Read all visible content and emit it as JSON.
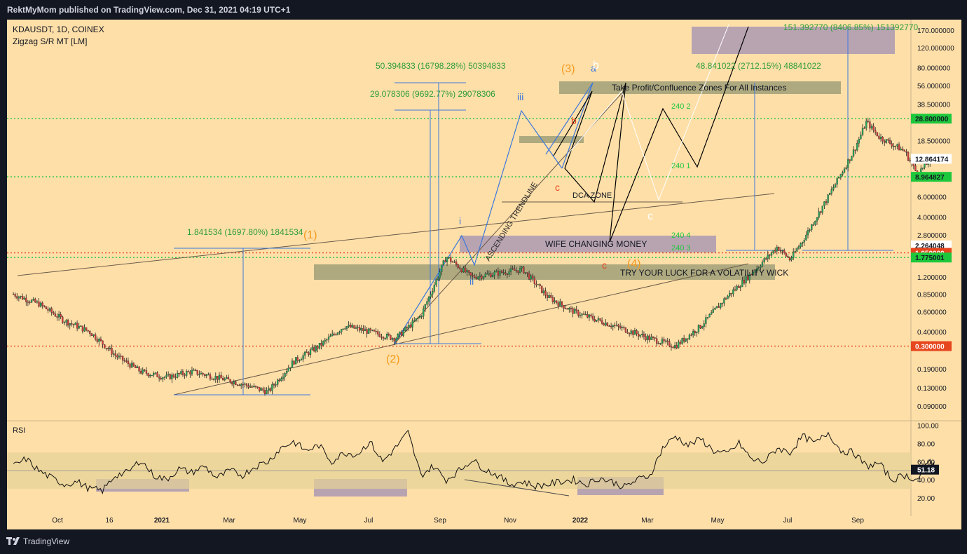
{
  "header": {
    "published": "RektMyMom published on TradingView.com, Dec 31, 2021 04:19 UTC+1"
  },
  "footer": {
    "brand": "TradingView"
  },
  "colors": {
    "background": "#ffdfa8",
    "frame": "#131722",
    "green_level": "#1ec83c",
    "red_level": "#e6451e",
    "blue_line": "#3c78dc",
    "zone_dark": "#a0a078",
    "zone_purple": "#a090b4"
  },
  "chart_data": {
    "type": "candlestick",
    "symbol_line": "KDAUSDT, 1D, COINEX",
    "indicator": "Zigzag S/R MT [LM]",
    "y_scale": "log",
    "ylim": [
      0.07,
      210
    ],
    "price_ticks": [
      "170.000000",
      "120.000000",
      "80.000000",
      "56.000000",
      "38.500000",
      "18.500000",
      "6.000000",
      "4.000000",
      "2.800000",
      "1.200000",
      "0.850000",
      "0.600000",
      "0.400000",
      "0.190000",
      "0.130000",
      "0.090000"
    ],
    "price_tick_values": [
      170,
      120,
      80,
      56,
      38.5,
      18.5,
      6,
      4,
      2.8,
      1.2,
      0.85,
      0.6,
      0.4,
      0.19,
      0.13,
      0.09
    ],
    "x_labels": [
      "Oct",
      "16",
      "2021",
      "Mar",
      "May",
      "Jul",
      "Sep",
      "Nov",
      "2022",
      "Mar",
      "May",
      "Jul",
      "Sep"
    ],
    "level_labels": [
      {
        "text": "28.800000",
        "value": 28.8,
        "color": "#1ec83c"
      },
      {
        "text": "12.864174",
        "value": 12.864174,
        "color": "#ffffff"
      },
      {
        "text": "8.964827",
        "value": 8.964827,
        "color": "#1ec83c"
      },
      {
        "text": "2.264048",
        "value": 2.264048,
        "color": "#ffffff"
      },
      {
        "text": "1.950000",
        "value": 1.95,
        "color": "#e6451e"
      },
      {
        "text": "1.775001",
        "value": 1.775001,
        "color": "#1ec83c"
      },
      {
        "text": "0.300000",
        "value": 0.3,
        "color": "#e6451e"
      }
    ],
    "zones": [
      "Take Profit/Confluence Zones For All Instances",
      "DCA ZONE",
      "WIFE CHANGING MONEY",
      "TRY YOUR LUCK FOR A VOLATILITY WICK"
    ],
    "trendline_label": "ASCENDING TRENDLINE",
    "measurements": [
      "1.841534 (1697.80%) 1841534",
      "29.078306 (9692.77%) 29078306",
      "50.394833 (16798.28%) 50394833",
      "48.841022 (2712.15%) 48841022",
      "151.392770 (8406.85%) 151392770"
    ],
    "fib_labels": [
      "240 2",
      "240 1",
      "240 4",
      "240 3"
    ],
    "wave_labels": [
      "(1)",
      "(2)",
      "(3)",
      "(4)",
      "i",
      "ii",
      "iii",
      "a",
      "b",
      "c",
      "c",
      "b",
      "c"
    ],
    "price_path": [
      [
        -6,
        0.85
      ],
      [
        -4,
        0.7
      ],
      [
        -2,
        0.5
      ],
      [
        0,
        0.4
      ],
      [
        2,
        0.25
      ],
      [
        4,
        0.18
      ],
      [
        6,
        0.16
      ],
      [
        8,
        0.18
      ],
      [
        10,
        0.16
      ],
      [
        12,
        0.14
      ],
      [
        14,
        0.12
      ],
      [
        16,
        0.22
      ],
      [
        18,
        0.3
      ],
      [
        20,
        0.45
      ],
      [
        22,
        0.4
      ],
      [
        24,
        0.35
      ],
      [
        26,
        0.55
      ],
      [
        28,
        1.8
      ],
      [
        30,
        1.2
      ],
      [
        32,
        1.3
      ],
      [
        34,
        1.4
      ],
      [
        36,
        0.8
      ],
      [
        38,
        0.6
      ],
      [
        40,
        0.5
      ],
      [
        42,
        0.42
      ],
      [
        44,
        0.35
      ],
      [
        46,
        0.3
      ],
      [
        48,
        0.45
      ],
      [
        50,
        0.8
      ],
      [
        52,
        1.3
      ],
      [
        54,
        2.2
      ],
      [
        55,
        1.7
      ],
      [
        56,
        2.5
      ],
      [
        58,
        6
      ],
      [
        60,
        15
      ],
      [
        61,
        27
      ],
      [
        62,
        20
      ],
      [
        64,
        15
      ],
      [
        65,
        9.5
      ],
      [
        66,
        12.5
      ]
    ],
    "rsi": {
      "label": "RSI",
      "ticks": [
        "100.00",
        "80.00",
        "60.00",
        "40.00",
        "20.00"
      ],
      "tick_values": [
        100,
        80,
        60,
        40,
        20
      ],
      "current": "51.18",
      "current_value": 51.18,
      "band": [
        30,
        70
      ],
      "series": [
        [
          -6,
          55
        ],
        [
          -5,
          63
        ],
        [
          -4,
          50
        ],
        [
          -3,
          42
        ],
        [
          -2,
          35
        ],
        [
          -1,
          38
        ],
        [
          0,
          30
        ],
        [
          1,
          28
        ],
        [
          2,
          45
        ],
        [
          3,
          48
        ],
        [
          4,
          62
        ],
        [
          5,
          45
        ],
        [
          6,
          40
        ],
        [
          7,
          52
        ],
        [
          8,
          48
        ],
        [
          9,
          55
        ],
        [
          10,
          42
        ],
        [
          11,
          50
        ],
        [
          12,
          45
        ],
        [
          13,
          55
        ],
        [
          14,
          60
        ],
        [
          15,
          75
        ],
        [
          16,
          82
        ],
        [
          17,
          72
        ],
        [
          18,
          78
        ],
        [
          19,
          60
        ],
        [
          20,
          70
        ],
        [
          21,
          68
        ],
        [
          22,
          82
        ],
        [
          23,
          60
        ],
        [
          24,
          75
        ],
        [
          25,
          92
        ],
        [
          26,
          45
        ],
        [
          27,
          55
        ],
        [
          28,
          40
        ],
        [
          29,
          50
        ],
        [
          30,
          62
        ],
        [
          31,
          52
        ],
        [
          32,
          45
        ],
        [
          33,
          35
        ],
        [
          34,
          38
        ],
        [
          35,
          33
        ],
        [
          36,
          35
        ],
        [
          37,
          38
        ],
        [
          38,
          40
        ],
        [
          39,
          35
        ],
        [
          40,
          42
        ],
        [
          41,
          38
        ],
        [
          42,
          32
        ],
        [
          43,
          40
        ],
        [
          44,
          45
        ],
        [
          45,
          75
        ],
        [
          46,
          88
        ],
        [
          47,
          78
        ],
        [
          48,
          85
        ],
        [
          49,
          72
        ],
        [
          50,
          68
        ],
        [
          51,
          80
        ],
        [
          52,
          62
        ],
        [
          53,
          60
        ],
        [
          54,
          75
        ],
        [
          55,
          70
        ],
        [
          56,
          88
        ],
        [
          57,
          80
        ],
        [
          58,
          92
        ],
        [
          59,
          72
        ],
        [
          60,
          70
        ],
        [
          61,
          55
        ],
        [
          62,
          58
        ],
        [
          63,
          40
        ],
        [
          64,
          45
        ],
        [
          65,
          40
        ],
        [
          66,
          62
        ],
        [
          66.5,
          51
        ]
      ]
    }
  }
}
